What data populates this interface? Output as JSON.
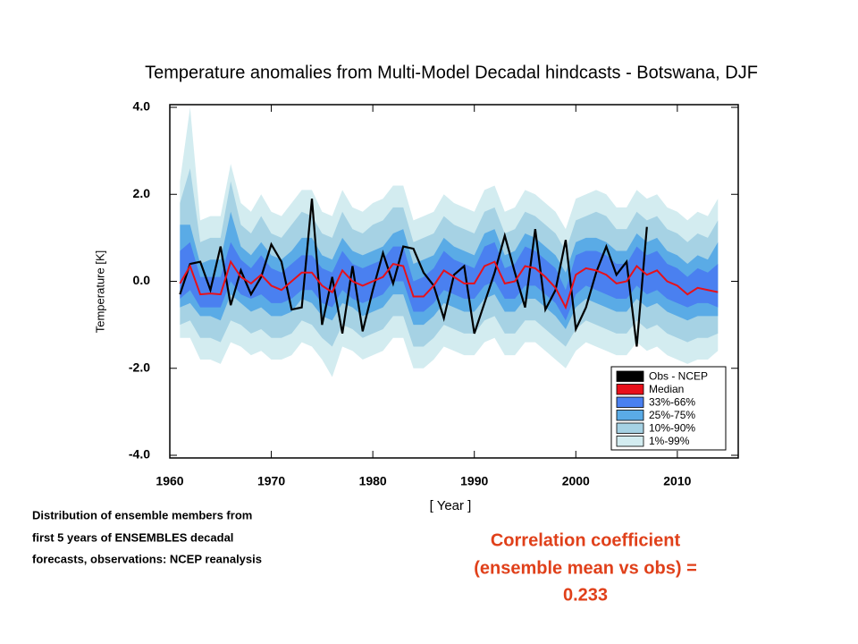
{
  "chart_data": {
    "type": "band",
    "title": "Temperature anomalies from Multi-Model Decadal hindcasts - Botswana, DJF",
    "y_label": "Temperature  [K]",
    "x_label": "[ Year ]",
    "note": [
      "Distribution of ensemble members from",
      "first 5 years of ENSEMBLES decadal",
      "forecasts, observations: NCEP reanalysis"
    ],
    "annotation": [
      "Correlation coefficient",
      "(ensemble mean vs obs) =",
      "0.233"
    ],
    "xlim": [
      1960,
      2016
    ],
    "xticks": [
      1960,
      1970,
      1980,
      1990,
      2000,
      2010
    ],
    "ylim": [
      -4,
      4
    ],
    "yticks": [
      {
        "value": 4,
        "label": "4.0"
      },
      {
        "value": 2,
        "label": "2.0"
      },
      {
        "value": 0,
        "label": "0.0"
      },
      {
        "value": -2,
        "label": "-2.0"
      },
      {
        "value": -4,
        "label": "-4.0"
      }
    ],
    "x": [
      1961,
      1962,
      1963,
      1964,
      1965,
      1966,
      1967,
      1968,
      1969,
      1970,
      1971,
      1972,
      1973,
      1974,
      1975,
      1976,
      1977,
      1978,
      1979,
      1980,
      1981,
      1982,
      1983,
      1984,
      1985,
      1986,
      1987,
      1988,
      1989,
      1990,
      1991,
      1992,
      1993,
      1994,
      1995,
      1996,
      1997,
      1998,
      1999,
      2000,
      2001,
      2002,
      2003,
      2004,
      2005,
      2006,
      2007,
      2008,
      2009,
      2010,
      2011,
      2012,
      2013,
      2014
    ],
    "lines": [
      {
        "name": "Obs - NCEP",
        "color": "#000000",
        "values": [
          -0.3,
          0.4,
          0.45,
          -0.2,
          0.8,
          -0.55,
          0.25,
          -0.3,
          0.1,
          0.85,
          0.45,
          -0.65,
          -0.6,
          1.9,
          -1,
          0.1,
          -1.2,
          0.35,
          -1.15,
          -0.2,
          0.65,
          -0.05,
          0.8,
          0.75,
          0.2,
          -0.1,
          -0.85,
          0.15,
          0.35,
          -1.2,
          -0.5,
          0.2,
          1.05,
          0.2,
          -0.6,
          1.2,
          -0.65,
          -0.2,
          0.95,
          -1.1,
          -0.6,
          0.2,
          0.8,
          0.15,
          0.45,
          -1.5,
          1.25,
          null,
          null,
          null,
          null,
          null,
          null,
          null
        ]
      },
      {
        "name": "Median",
        "color": "#e8101a",
        "values": [
          -0.05,
          0.35,
          -0.3,
          -0.28,
          -0.3,
          0.45,
          0.1,
          -0.05,
          0.15,
          -0.1,
          -0.2,
          0,
          0.2,
          0.2,
          -0.1,
          -0.25,
          0.25,
          0,
          -0.1,
          0,
          0.1,
          0.4,
          0.35,
          -0.35,
          -0.35,
          -0.1,
          0.25,
          0.1,
          -0.05,
          -0.05,
          0.35,
          0.45,
          -0.05,
          0,
          0.35,
          0.3,
          0.1,
          -0.15,
          -0.6,
          0.15,
          0.3,
          0.25,
          0.15,
          -0.05,
          0,
          0.35,
          0.15,
          0.25,
          0,
          -0.1,
          -0.3,
          -0.15,
          -0.2,
          -0.25
        ]
      }
    ],
    "bands": [
      {
        "name": "33%-66%",
        "color": "#4a80f0",
        "low": [
          -0.4,
          -0.2,
          -0.6,
          -0.6,
          -0.6,
          0,
          -0.3,
          -0.4,
          -0.3,
          -0.5,
          -0.5,
          -0.4,
          -0.2,
          -0.2,
          -0.5,
          -0.6,
          -0.2,
          -0.4,
          -0.5,
          -0.4,
          -0.3,
          0,
          0,
          -0.7,
          -0.7,
          -0.5,
          -0.2,
          -0.3,
          -0.4,
          -0.4,
          -0.1,
          0,
          -0.4,
          -0.4,
          -0.1,
          -0.1,
          -0.3,
          -0.5,
          -0.9,
          -0.3,
          -0.1,
          -0.2,
          -0.3,
          -0.4,
          -0.4,
          -0.1,
          -0.3,
          -0.2,
          -0.4,
          -0.5,
          -0.6,
          -0.5,
          -0.5,
          -0.6
        ],
        "high": [
          0.7,
          0.9,
          0.1,
          0.1,
          0.1,
          0.9,
          0.5,
          0.3,
          0.6,
          0.3,
          0.2,
          0.4,
          0.6,
          0.6,
          0.3,
          0.2,
          0.7,
          0.4,
          0.3,
          0.4,
          0.5,
          0.8,
          0.8,
          0,
          0.1,
          0.3,
          0.7,
          0.5,
          0.4,
          0.3,
          0.8,
          0.9,
          0.3,
          0.4,
          0.8,
          0.7,
          0.5,
          0.3,
          -0.2,
          0.6,
          0.7,
          0.7,
          0.6,
          0.4,
          0.4,
          0.8,
          0.6,
          0.7,
          0.4,
          0.3,
          0.1,
          0.3,
          0.2,
          0.4
        ]
      },
      {
        "name": "25%-75%",
        "color": "#5aabe6",
        "low": [
          -0.6,
          -0.5,
          -0.8,
          -0.8,
          -0.9,
          -0.3,
          -0.5,
          -0.7,
          -0.6,
          -0.8,
          -0.8,
          -0.7,
          -0.4,
          -0.5,
          -0.8,
          -0.9,
          -0.5,
          -0.6,
          -0.8,
          -0.7,
          -0.6,
          -0.3,
          -0.3,
          -1,
          -1,
          -0.8,
          -0.5,
          -0.6,
          -0.7,
          -0.7,
          -0.4,
          -0.3,
          -0.7,
          -0.7,
          -0.4,
          -0.4,
          -0.6,
          -0.8,
          -1.1,
          -0.6,
          -0.4,
          -0.5,
          -0.6,
          -0.7,
          -0.7,
          -0.4,
          -0.6,
          -0.5,
          -0.7,
          -0.8,
          -0.9,
          -0.8,
          -0.8,
          -0.8
        ],
        "high": [
          1.3,
          1.3,
          0.4,
          0.5,
          0.5,
          1.6,
          0.8,
          0.6,
          0.9,
          0.6,
          0.5,
          0.7,
          1,
          1,
          0.6,
          0.5,
          1,
          0.7,
          0.6,
          0.7,
          0.8,
          1.1,
          1.2,
          0.4,
          0.5,
          0.6,
          1,
          0.8,
          0.7,
          0.6,
          1.1,
          1.2,
          0.6,
          0.7,
          1.1,
          1,
          0.8,
          0.6,
          0.2,
          0.9,
          1,
          1,
          0.9,
          0.7,
          0.7,
          1.1,
          0.9,
          1,
          0.7,
          0.6,
          0.4,
          0.6,
          0.5,
          0.9
        ]
      },
      {
        "name": "10%-90%",
        "color": "#a6d2e4",
        "low": [
          -1,
          -0.9,
          -1.3,
          -1.3,
          -1.4,
          -0.9,
          -1,
          -1.2,
          -1.1,
          -1.3,
          -1.3,
          -1.2,
          -0.9,
          -1,
          -1.3,
          -1.5,
          -1,
          -1.1,
          -1.3,
          -1.2,
          -1.1,
          -0.8,
          -0.8,
          -1.5,
          -1.5,
          -1.3,
          -1,
          -1.1,
          -1.2,
          -1.2,
          -0.9,
          -0.8,
          -1.2,
          -1.2,
          -0.9,
          -0.9,
          -1.1,
          -1.3,
          -1.5,
          -1.1,
          -0.9,
          -1,
          -1.1,
          -1.2,
          -1.2,
          -0.9,
          -1.1,
          -1,
          -1.2,
          -1.3,
          -1.4,
          -1.3,
          -1.3,
          -1.2
        ],
        "high": [
          1.8,
          2.6,
          0.9,
          1,
          1,
          2.3,
          1.3,
          1.1,
          1.5,
          1.1,
          1,
          1.3,
          1.6,
          1.5,
          1.1,
          1,
          1.6,
          1.2,
          1.1,
          1.3,
          1.4,
          1.7,
          1.7,
          0.9,
          1,
          1.1,
          1.5,
          1.3,
          1.2,
          1.1,
          1.6,
          1.7,
          1.1,
          1.2,
          1.6,
          1.5,
          1.3,
          1.1,
          0.7,
          1.4,
          1.5,
          1.6,
          1.5,
          1.2,
          1.2,
          1.6,
          1.4,
          1.5,
          1.2,
          1.1,
          0.9,
          1.1,
          1,
          1.4
        ]
      },
      {
        "name": "1%-99%",
        "color": "#d3ecf0",
        "low": [
          -1.3,
          -1.3,
          -1.8,
          -1.8,
          -1.9,
          -1.4,
          -1.5,
          -1.7,
          -1.6,
          -1.8,
          -1.8,
          -1.7,
          -1.4,
          -1.5,
          -1.8,
          -2.2,
          -1.5,
          -1.6,
          -1.8,
          -1.7,
          -1.6,
          -1.3,
          -1.3,
          -2,
          -2,
          -1.8,
          -1.5,
          -1.6,
          -1.7,
          -1.7,
          -1.4,
          -1.3,
          -1.7,
          -1.7,
          -1.4,
          -1.4,
          -1.6,
          -1.8,
          -2,
          -1.6,
          -1.4,
          -1.5,
          -1.6,
          -1.7,
          -1.7,
          -1.4,
          -1.6,
          -1.5,
          -1.7,
          -1.8,
          -1.9,
          -1.8,
          -1.8,
          -1.6
        ],
        "high": [
          2.3,
          4,
          1.4,
          1.5,
          1.5,
          2.7,
          1.8,
          1.6,
          2,
          1.6,
          1.5,
          1.8,
          2.1,
          2.1,
          1.6,
          1.5,
          2.1,
          1.7,
          1.6,
          1.8,
          1.9,
          2.2,
          2.2,
          1.4,
          1.5,
          1.6,
          2,
          1.8,
          1.7,
          1.6,
          2.1,
          2.2,
          1.6,
          1.7,
          2.1,
          2,
          1.8,
          1.6,
          1.2,
          1.9,
          2,
          2.1,
          2,
          1.7,
          1.7,
          2.1,
          1.9,
          2,
          1.7,
          1.6,
          1.4,
          1.6,
          1.5,
          1.9
        ]
      }
    ],
    "legend": "lower right"
  }
}
